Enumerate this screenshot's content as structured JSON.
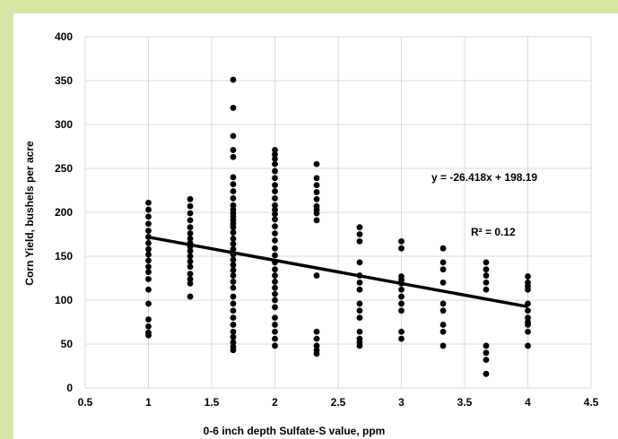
{
  "chart_data": {
    "type": "scatter",
    "xlabel": "0-6 inch depth Sulfate-S value, ppm",
    "ylabel": "Corn Yield, bushels per acre",
    "xlim": [
      0.5,
      4.5
    ],
    "ylim": [
      0,
      400
    ],
    "xticks": [
      "0.5",
      "1",
      "1.5",
      "2",
      "2.5",
      "3",
      "3.5",
      "4",
      "4.5"
    ],
    "yticks": [
      "0",
      "50",
      "100",
      "150",
      "200",
      "250",
      "300",
      "350",
      "400"
    ],
    "grid": true,
    "point_color": "#000000",
    "trendline": {
      "equation": "y = -26.418x + 198.19",
      "r_squared": "R² = 0.12",
      "slope": -26.418,
      "intercept": 198.19,
      "x_range": [
        1,
        4
      ]
    },
    "points": [
      [
        1,
        211
      ],
      [
        1,
        203
      ],
      [
        1,
        195
      ],
      [
        1,
        187
      ],
      [
        1,
        179
      ],
      [
        1,
        172
      ],
      [
        1,
        165
      ],
      [
        1,
        158
      ],
      [
        1,
        152
      ],
      [
        1,
        145
      ],
      [
        1,
        138
      ],
      [
        1,
        132
      ],
      [
        1,
        124
      ],
      [
        1,
        112
      ],
      [
        1,
        96
      ],
      [
        1,
        78
      ],
      [
        1,
        70
      ],
      [
        1,
        63
      ],
      [
        1,
        60
      ],
      [
        1.33,
        215
      ],
      [
        1.33,
        207
      ],
      [
        1.33,
        199
      ],
      [
        1.33,
        191
      ],
      [
        1.33,
        183
      ],
      [
        1.33,
        176
      ],
      [
        1.33,
        170
      ],
      [
        1.33,
        165
      ],
      [
        1.33,
        161
      ],
      [
        1.33,
        156
      ],
      [
        1.33,
        150
      ],
      [
        1.33,
        144
      ],
      [
        1.33,
        138
      ],
      [
        1.33,
        130
      ],
      [
        1.33,
        124
      ],
      [
        1.33,
        119
      ],
      [
        1.33,
        104
      ],
      [
        1.67,
        351
      ],
      [
        1.67,
        319
      ],
      [
        1.67,
        287
      ],
      [
        1.67,
        271
      ],
      [
        1.67,
        263
      ],
      [
        1.67,
        240
      ],
      [
        1.67,
        232
      ],
      [
        1.67,
        224
      ],
      [
        1.67,
        216
      ],
      [
        1.67,
        208
      ],
      [
        1.67,
        203
      ],
      [
        1.67,
        199
      ],
      [
        1.67,
        195
      ],
      [
        1.67,
        191
      ],
      [
        1.67,
        187
      ],
      [
        1.67,
        183
      ],
      [
        1.67,
        177
      ],
      [
        1.67,
        170
      ],
      [
        1.67,
        164
      ],
      [
        1.67,
        158
      ],
      [
        1.67,
        152
      ],
      [
        1.67,
        146
      ],
      [
        1.67,
        140
      ],
      [
        1.67,
        134
      ],
      [
        1.67,
        128
      ],
      [
        1.67,
        121
      ],
      [
        1.67,
        114
      ],
      [
        1.67,
        104
      ],
      [
        1.67,
        96
      ],
      [
        1.67,
        88
      ],
      [
        1.67,
        80
      ],
      [
        1.67,
        72
      ],
      [
        1.67,
        64
      ],
      [
        1.67,
        58
      ],
      [
        1.67,
        52
      ],
      [
        1.67,
        47
      ],
      [
        1.67,
        43
      ],
      [
        2,
        271
      ],
      [
        2,
        266
      ],
      [
        2,
        261
      ],
      [
        2,
        255
      ],
      [
        2,
        247
      ],
      [
        2,
        239
      ],
      [
        2,
        231
      ],
      [
        2,
        224
      ],
      [
        2,
        216
      ],
      [
        2,
        208
      ],
      [
        2,
        203
      ],
      [
        2,
        198
      ],
      [
        2,
        192
      ],
      [
        2,
        184
      ],
      [
        2,
        176
      ],
      [
        2,
        168
      ],
      [
        2,
        159
      ],
      [
        2,
        151
      ],
      [
        2,
        143
      ],
      [
        2,
        135
      ],
      [
        2,
        128
      ],
      [
        2,
        121
      ],
      [
        2,
        114
      ],
      [
        2,
        107
      ],
      [
        2,
        100
      ],
      [
        2,
        92
      ],
      [
        2,
        80
      ],
      [
        2,
        72
      ],
      [
        2,
        64
      ],
      [
        2,
        56
      ],
      [
        2,
        48
      ],
      [
        2.33,
        255
      ],
      [
        2.33,
        239
      ],
      [
        2.33,
        231
      ],
      [
        2.33,
        223
      ],
      [
        2.33,
        215
      ],
      [
        2.33,
        207
      ],
      [
        2.33,
        203
      ],
      [
        2.33,
        199
      ],
      [
        2.33,
        191
      ],
      [
        2.33,
        128
      ],
      [
        2.33,
        64
      ],
      [
        2.33,
        56
      ],
      [
        2.33,
        48
      ],
      [
        2.33,
        43
      ],
      [
        2.33,
        39
      ],
      [
        2.67,
        183
      ],
      [
        2.67,
        175
      ],
      [
        2.67,
        167
      ],
      [
        2.67,
        143
      ],
      [
        2.67,
        128
      ],
      [
        2.67,
        120
      ],
      [
        2.67,
        112
      ],
      [
        2.67,
        96
      ],
      [
        2.67,
        88
      ],
      [
        2.67,
        80
      ],
      [
        2.67,
        64
      ],
      [
        2.67,
        56
      ],
      [
        2.67,
        52
      ],
      [
        2.67,
        48
      ],
      [
        3,
        167
      ],
      [
        3,
        159
      ],
      [
        3,
        127
      ],
      [
        3,
        123
      ],
      [
        3,
        119
      ],
      [
        3,
        112
      ],
      [
        3,
        104
      ],
      [
        3,
        96
      ],
      [
        3,
        88
      ],
      [
        3,
        64
      ],
      [
        3,
        56
      ],
      [
        3.33,
        159
      ],
      [
        3.33,
        143
      ],
      [
        3.33,
        135
      ],
      [
        3.33,
        120
      ],
      [
        3.33,
        96
      ],
      [
        3.33,
        88
      ],
      [
        3.33,
        72
      ],
      [
        3.33,
        64
      ],
      [
        3.33,
        48
      ],
      [
        3.67,
        143
      ],
      [
        3.67,
        135
      ],
      [
        3.67,
        128
      ],
      [
        3.67,
        120
      ],
      [
        3.67,
        112
      ],
      [
        3.67,
        48
      ],
      [
        3.67,
        40
      ],
      [
        3.67,
        32
      ],
      [
        3.67,
        16
      ],
      [
        4,
        127
      ],
      [
        4,
        120
      ],
      [
        4,
        116
      ],
      [
        4,
        112
      ],
      [
        4,
        96
      ],
      [
        4,
        88
      ],
      [
        4,
        80
      ],
      [
        4,
        75
      ],
      [
        4,
        72
      ],
      [
        4,
        64
      ],
      [
        4,
        48
      ]
    ]
  }
}
